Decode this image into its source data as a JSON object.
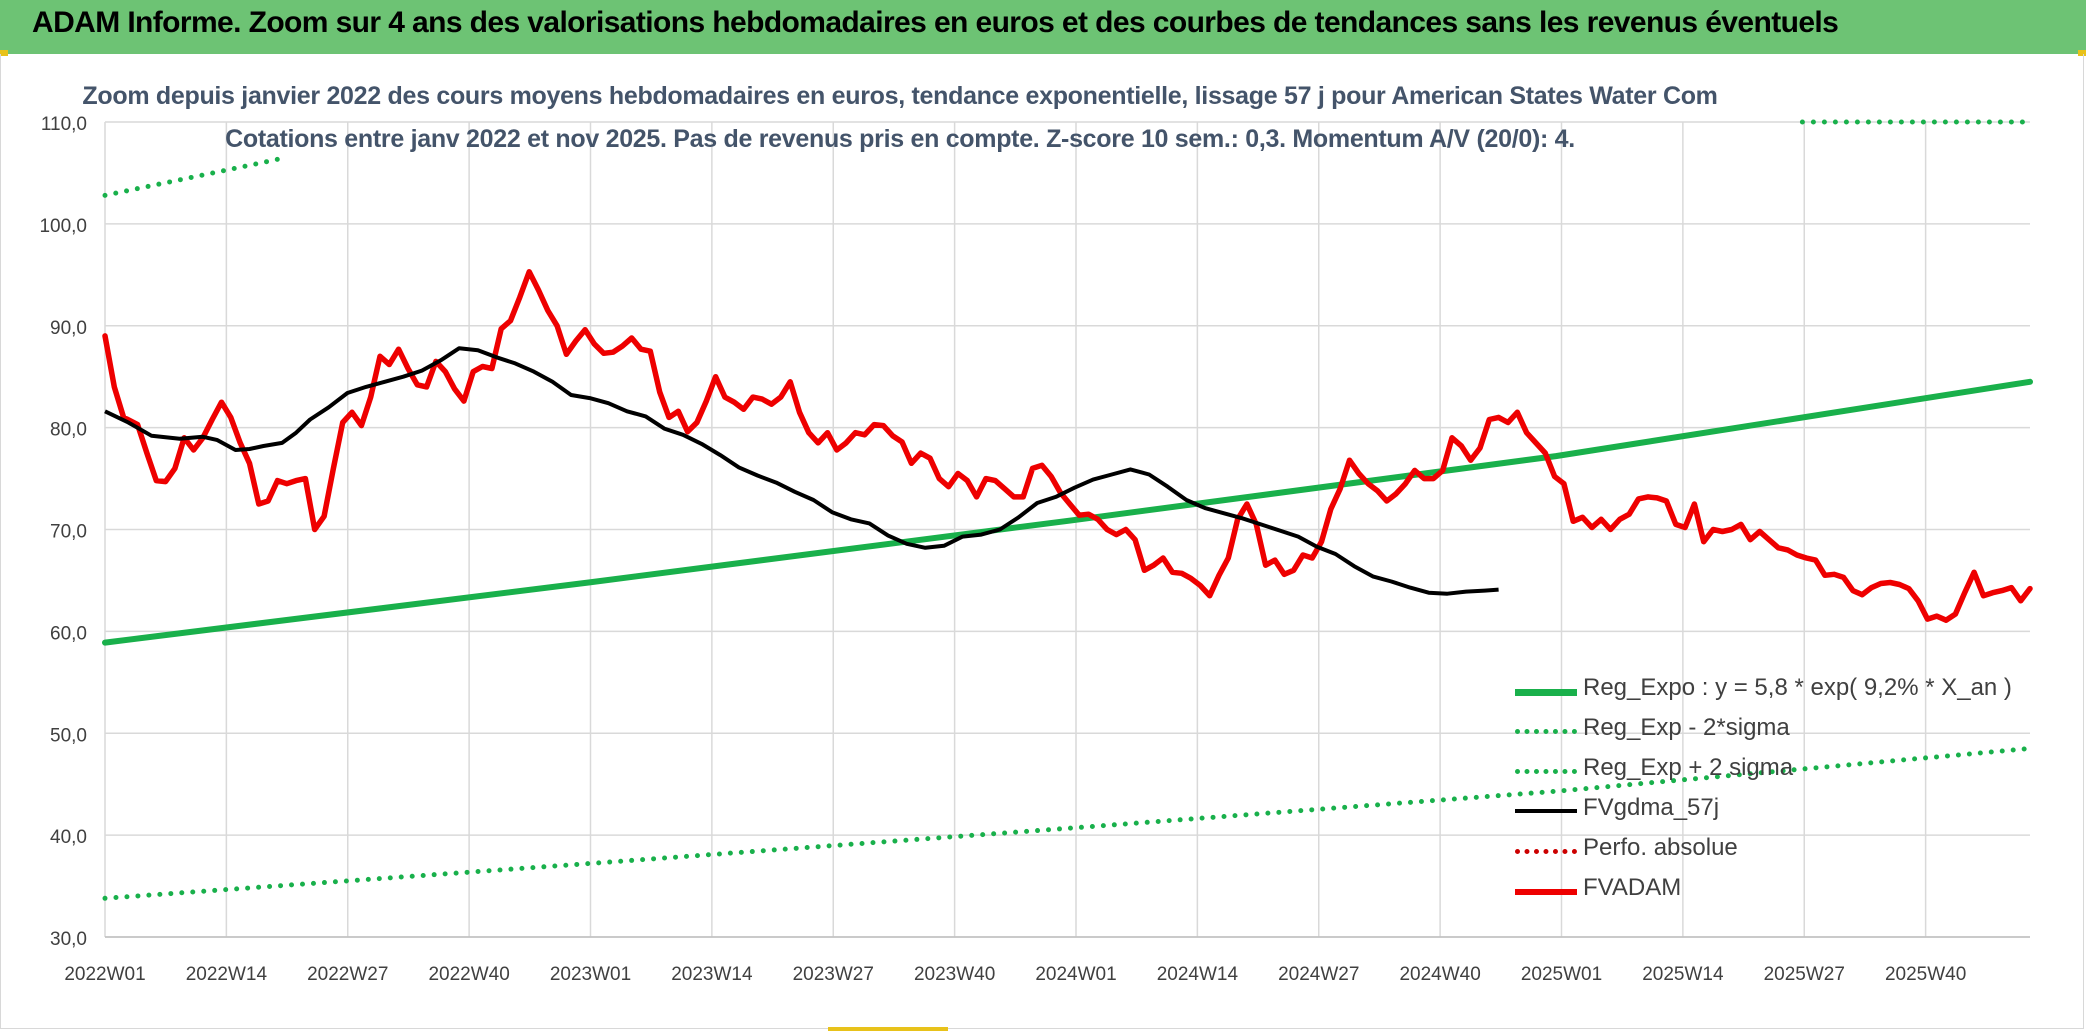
{
  "banner": {
    "title": "ADAM Informe. Zoom sur 4 ans des valorisations hebdomadaires en euros et des courbes de tendances sans les revenus éventuels"
  },
  "colors": {
    "banner_bg": "#6dc374",
    "accent": "#e8c21a",
    "reg_expo": "#19b04b",
    "fvgdma": "#000000",
    "fvadam": "#ee0000",
    "perfo": "#cc0000",
    "subtitle": "#44546a",
    "axis_text": "#404040",
    "grid": "#d9d9d9"
  },
  "chart_data": {
    "type": "line",
    "title": "Zoom depuis janvier 2022 des cours moyens hebdomadaires en euros, tendance exponentielle, lissage 57 j pour American States Water Com",
    "subtitle": "Cotations entre janv 2022 et nov 2025. Pas de revenus pris en compte. Z-score 10 sem.: 0,3. Momentum A/V (20/0): 4.",
    "xlabel": "",
    "ylabel": "",
    "ylim": [
      30,
      110
    ],
    "yticks": [
      "30,0",
      "40,0",
      "50,0",
      "60,0",
      "70,0",
      "80,0",
      "90,0",
      "100,0",
      "110,0"
    ],
    "xticks": [
      "2022W01",
      "2022W14",
      "2022W27",
      "2022W40",
      "2023W01",
      "2023W14",
      "2023W27",
      "2023W40",
      "2024W01",
      "2024W14",
      "2024W27",
      "2024W40",
      "2025W01",
      "2025W14",
      "2025W27",
      "2025W40"
    ],
    "x_week_index_max": 203,
    "grid": true,
    "legend_position": "bottom-right",
    "series": [
      {
        "name": "Reg_Expo : y = 5,8 * exp( 9,2% *  X_an )",
        "style": "solid-thick",
        "color": "#19b04b",
        "points": [
          [
            0,
            58.9
          ],
          [
            51,
            64.8
          ],
          [
            102,
            70.9
          ],
          [
            153,
            77.2
          ],
          [
            203,
            84.5
          ]
        ]
      },
      {
        "name": "Reg_Exp - 2*sigma",
        "style": "dotted",
        "color": "#19b04b",
        "points": [
          [
            0,
            33.8
          ],
          [
            51,
            37.2
          ],
          [
            102,
            40.7
          ],
          [
            153,
            44.3
          ],
          [
            203,
            48.5
          ]
        ]
      },
      {
        "name": "Reg_Exp + 2 sigma",
        "style": "dotted",
        "color": "#19b04b",
        "points": [
          [
            0,
            102.8
          ],
          [
            16,
            105.9
          ],
          [
            19,
            106.5
          ]
        ],
        "points_b": [
          [
            179,
            110.0
          ],
          [
            203,
            110.0
          ]
        ]
      },
      {
        "name": "FVgdma_57j",
        "style": "solid",
        "color": "#000000",
        "points": [
          [
            0,
            81.6
          ],
          [
            5,
            80.5
          ],
          [
            10,
            79.2
          ],
          [
            16,
            78.9
          ],
          [
            21,
            79.1
          ],
          [
            24,
            78.8
          ],
          [
            28,
            77.8
          ],
          [
            31,
            77.9
          ],
          [
            34,
            78.2
          ],
          [
            38,
            78.5
          ],
          [
            41,
            79.5
          ],
          [
            44,
            80.8
          ],
          [
            48,
            82.0
          ],
          [
            52,
            83.4
          ],
          [
            56,
            84.0
          ],
          [
            60,
            84.5
          ],
          [
            64,
            85.0
          ],
          [
            68,
            85.6
          ],
          [
            72,
            86.6
          ],
          [
            76,
            87.8
          ],
          [
            80,
            87.6
          ],
          [
            84,
            86.9
          ],
          [
            88,
            86.3
          ],
          [
            92,
            85.5
          ],
          [
            96,
            84.5
          ],
          [
            100,
            83.2
          ],
          [
            104,
            82.9
          ],
          [
            108,
            82.4
          ],
          [
            112,
            81.6
          ],
          [
            116,
            81.1
          ],
          [
            120,
            79.9
          ],
          [
            124,
            79.3
          ],
          [
            128,
            78.4
          ],
          [
            132,
            77.3
          ],
          [
            136,
            76.1
          ],
          [
            140,
            75.3
          ],
          [
            144,
            74.6
          ],
          [
            148,
            73.7
          ],
          [
            152,
            72.9
          ],
          [
            156,
            71.7
          ],
          [
            160,
            71.0
          ],
          [
            164,
            70.6
          ],
          [
            168,
            69.4
          ],
          [
            172,
            68.6
          ],
          [
            176,
            68.2
          ],
          [
            180,
            68.4
          ],
          [
            184,
            69.3
          ],
          [
            188,
            69.5
          ],
          [
            192,
            70.0
          ],
          [
            196,
            71.2
          ],
          [
            200,
            72.6
          ],
          [
            204,
            73.2
          ],
          [
            208,
            74.1
          ],
          [
            212,
            74.9
          ],
          [
            216,
            75.4
          ],
          [
            220,
            75.9
          ],
          [
            224,
            75.4
          ],
          [
            228,
            74.2
          ],
          [
            232,
            72.9
          ],
          [
            236,
            72.1
          ],
          [
            240,
            71.6
          ],
          [
            244,
            71.1
          ],
          [
            248,
            70.5
          ],
          [
            252,
            69.9
          ],
          [
            256,
            69.3
          ],
          [
            260,
            68.3
          ],
          [
            264,
            67.6
          ],
          [
            268,
            66.4
          ],
          [
            272,
            65.4
          ],
          [
            276,
            64.9
          ],
          [
            280,
            64.3
          ],
          [
            284,
            63.8
          ],
          [
            288,
            63.7
          ],
          [
            292,
            63.9
          ],
          [
            296,
            64.0
          ],
          [
            299,
            64.1
          ]
        ]
      },
      {
        "name": "Perfo. absolue",
        "style": "dotted",
        "color": "#cc0000",
        "points": []
      },
      {
        "name": "FVADAM",
        "style": "solid-thick",
        "color": "#ee0000",
        "points": [
          [
            0,
            89.0
          ],
          [
            2,
            84.0
          ],
          [
            4,
            81.0
          ],
          [
            7,
            80.3
          ],
          [
            9,
            77.5
          ],
          [
            11,
            74.8
          ],
          [
            13,
            74.7
          ],
          [
            15,
            76.0
          ],
          [
            17,
            79.0
          ],
          [
            19,
            77.8
          ],
          [
            21,
            79.0
          ],
          [
            23,
            80.8
          ],
          [
            25,
            82.5
          ],
          [
            27,
            81.0
          ],
          [
            29,
            78.5
          ],
          [
            31,
            76.5
          ],
          [
            33,
            72.5
          ],
          [
            35,
            72.8
          ],
          [
            37,
            74.8
          ],
          [
            39,
            74.5
          ],
          [
            41,
            74.8
          ],
          [
            43,
            75.0
          ],
          [
            45,
            70.0
          ],
          [
            47,
            71.3
          ],
          [
            49,
            76.0
          ],
          [
            51,
            80.5
          ],
          [
            53,
            81.5
          ],
          [
            55,
            80.2
          ],
          [
            57,
            83.0
          ],
          [
            59,
            87.0
          ],
          [
            61,
            86.2
          ],
          [
            63,
            87.7
          ],
          [
            65,
            85.8
          ],
          [
            67,
            84.2
          ],
          [
            69,
            84.0
          ],
          [
            71,
            86.5
          ],
          [
            73,
            85.5
          ],
          [
            75,
            83.8
          ],
          [
            77,
            82.6
          ],
          [
            79,
            85.5
          ],
          [
            81,
            86.0
          ],
          [
            83,
            85.8
          ],
          [
            85,
            89.7
          ],
          [
            87,
            90.5
          ],
          [
            89,
            92.8
          ],
          [
            91,
            95.3
          ],
          [
            93,
            93.5
          ],
          [
            95,
            91.5
          ],
          [
            97,
            90.0
          ],
          [
            99,
            87.2
          ],
          [
            101,
            88.5
          ],
          [
            103,
            89.6
          ],
          [
            105,
            88.2
          ],
          [
            107,
            87.3
          ],
          [
            109,
            87.4
          ],
          [
            111,
            88.0
          ],
          [
            113,
            88.8
          ],
          [
            115,
            87.7
          ],
          [
            117,
            87.5
          ],
          [
            119,
            83.5
          ],
          [
            121,
            81.0
          ],
          [
            123,
            81.6
          ],
          [
            125,
            79.6
          ],
          [
            127,
            80.5
          ],
          [
            129,
            82.6
          ],
          [
            131,
            85.0
          ],
          [
            133,
            83.0
          ],
          [
            135,
            82.5
          ],
          [
            137,
            81.8
          ],
          [
            139,
            83.0
          ],
          [
            141,
            82.8
          ],
          [
            143,
            82.3
          ],
          [
            145,
            83.0
          ],
          [
            147,
            84.5
          ],
          [
            149,
            81.5
          ],
          [
            151,
            79.5
          ],
          [
            153,
            78.5
          ],
          [
            155,
            79.5
          ],
          [
            157,
            77.8
          ],
          [
            159,
            78.5
          ],
          [
            161,
            79.5
          ],
          [
            163,
            79.3
          ],
          [
            165,
            80.3
          ],
          [
            167,
            80.2
          ],
          [
            169,
            79.2
          ],
          [
            171,
            78.6
          ],
          [
            173,
            76.5
          ],
          [
            175,
            77.5
          ],
          [
            177,
            77.0
          ],
          [
            179,
            75.0
          ],
          [
            181,
            74.2
          ],
          [
            183,
            75.5
          ],
          [
            185,
            74.8
          ],
          [
            187,
            73.2
          ],
          [
            189,
            75.0
          ],
          [
            191,
            74.8
          ],
          [
            193,
            74.0
          ],
          [
            195,
            73.2
          ],
          [
            197,
            73.2
          ],
          [
            199,
            76.0
          ],
          [
            201,
            76.3
          ],
          [
            203,
            75.2
          ],
          [
            205,
            73.6
          ],
          [
            207,
            72.5
          ],
          [
            209,
            71.4
          ],
          [
            211,
            71.5
          ],
          [
            213,
            71.0
          ],
          [
            215,
            70.0
          ],
          [
            217,
            69.5
          ],
          [
            219,
            70.0
          ],
          [
            221,
            69.0
          ],
          [
            223,
            66.0
          ],
          [
            225,
            66.5
          ],
          [
            227,
            67.2
          ],
          [
            229,
            65.8
          ],
          [
            231,
            65.7
          ],
          [
            233,
            65.2
          ],
          [
            235,
            64.5
          ],
          [
            237,
            63.5
          ],
          [
            239,
            65.5
          ],
          [
            241,
            67.2
          ],
          [
            243,
            71.0
          ],
          [
            245,
            72.5
          ],
          [
            247,
            70.5
          ],
          [
            249,
            66.5
          ],
          [
            251,
            67.0
          ],
          [
            253,
            65.6
          ],
          [
            255,
            66.0
          ],
          [
            257,
            67.5
          ],
          [
            259,
            67.2
          ],
          [
            261,
            68.8
          ],
          [
            263,
            72.0
          ],
          [
            265,
            74.0
          ],
          [
            267,
            76.8
          ],
          [
            269,
            75.5
          ],
          [
            271,
            74.5
          ],
          [
            273,
            73.8
          ],
          [
            275,
            72.8
          ],
          [
            277,
            73.5
          ],
          [
            279,
            74.5
          ],
          [
            281,
            75.8
          ],
          [
            283,
            75.0
          ],
          [
            285,
            75.0
          ],
          [
            287,
            75.8
          ],
          [
            289,
            79.0
          ],
          [
            291,
            78.2
          ],
          [
            293,
            76.8
          ],
          [
            295,
            78.0
          ],
          [
            297,
            80.8
          ],
          [
            299,
            81.0
          ],
          [
            301,
            80.5
          ],
          [
            303,
            81.5
          ],
          [
            305,
            79.5
          ],
          [
            307,
            78.5
          ],
          [
            309,
            77.5
          ],
          [
            311,
            75.2
          ],
          [
            313,
            74.5
          ],
          [
            315,
            70.8
          ],
          [
            317,
            71.2
          ],
          [
            319,
            70.2
          ],
          [
            321,
            71.0
          ],
          [
            323,
            70.0
          ],
          [
            325,
            71.0
          ],
          [
            327,
            71.5
          ],
          [
            329,
            73.0
          ],
          [
            331,
            73.2
          ],
          [
            333,
            73.1
          ],
          [
            335,
            72.8
          ],
          [
            337,
            70.5
          ],
          [
            339,
            70.2
          ],
          [
            341,
            72.5
          ],
          [
            343,
            68.8
          ],
          [
            345,
            70.0
          ],
          [
            347,
            69.8
          ],
          [
            349,
            70.0
          ],
          [
            351,
            70.5
          ],
          [
            353,
            69.0
          ],
          [
            355,
            69.8
          ],
          [
            357,
            69.0
          ],
          [
            359,
            68.2
          ],
          [
            361,
            68.0
          ],
          [
            363,
            67.5
          ],
          [
            365,
            67.2
          ],
          [
            367,
            67.0
          ],
          [
            369,
            65.5
          ],
          [
            371,
            65.6
          ],
          [
            373,
            65.3
          ],
          [
            375,
            64.0
          ],
          [
            377,
            63.6
          ],
          [
            379,
            64.3
          ],
          [
            381,
            64.7
          ],
          [
            383,
            64.8
          ],
          [
            385,
            64.6
          ],
          [
            387,
            64.2
          ],
          [
            389,
            63.0
          ],
          [
            391,
            61.2
          ],
          [
            393,
            61.5
          ],
          [
            395,
            61.1
          ],
          [
            397,
            61.7
          ],
          [
            399,
            63.8
          ],
          [
            401,
            65.8
          ],
          [
            403,
            63.5
          ],
          [
            405,
            63.8
          ],
          [
            407,
            64.0
          ],
          [
            409,
            64.3
          ],
          [
            411,
            63.0
          ],
          [
            413,
            64.2
          ]
        ]
      }
    ]
  }
}
